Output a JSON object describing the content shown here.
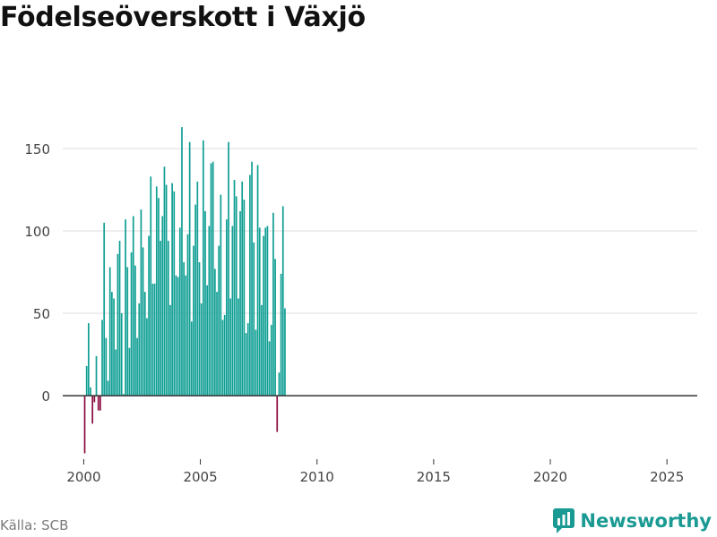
{
  "title": "Födelseöverskott i Växjö",
  "source": "Källa: SCB",
  "brand": {
    "name": "Newsworthy",
    "icon": "newsworthy-logo-icon"
  },
  "colors": {
    "positive": "#0e9e93",
    "negative": "#8a0c3e",
    "grid": "#dddddd",
    "zero": "#333333",
    "axis_text": "#444444"
  },
  "chart_data": {
    "type": "bar",
    "title": "Födelseöverskott i Växjö",
    "xlabel": "",
    "ylabel": "",
    "granularity": "monthly",
    "start": "2000-01",
    "xlim": [
      1999.1,
      2026.3
    ],
    "ylim": [
      -38,
      175
    ],
    "xticks": [
      2000,
      2005,
      2010,
      2015,
      2020,
      2025
    ],
    "yticks": [
      0,
      50,
      100,
      150
    ],
    "values": [
      -35,
      18,
      44,
      5,
      -17,
      -4,
      24,
      -9,
      -9,
      46,
      105,
      35,
      9,
      78,
      63,
      59,
      28,
      86,
      94,
      50,
      1,
      107,
      78,
      29,
      87,
      109,
      79,
      35,
      56,
      113,
      90,
      63,
      47,
      97,
      133,
      68,
      68,
      127,
      120,
      94,
      109,
      139,
      128,
      94,
      55,
      129,
      124,
      73,
      72,
      102,
      163,
      81,
      73,
      98,
      154,
      45,
      91,
      116,
      130,
      81,
      56,
      155,
      112,
      67,
      103,
      141,
      142,
      77,
      63,
      91,
      122,
      46,
      49,
      107,
      154,
      59,
      103,
      131,
      121,
      59,
      112,
      130,
      119,
      38,
      44,
      134,
      142,
      93,
      40,
      140,
      102,
      55,
      97,
      102,
      103,
      33,
      43,
      111,
      83,
      -22,
      14,
      74,
      115,
      53
    ]
  }
}
